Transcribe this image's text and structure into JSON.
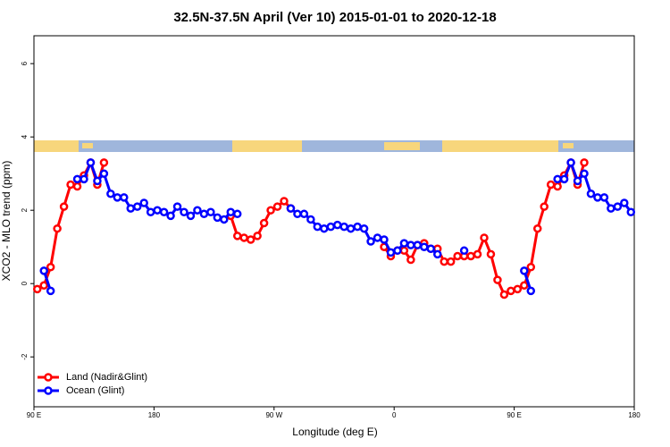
{
  "chart_data": {
    "type": "line",
    "title": "32.5N-37.5N April (Ver 10)   2015-01-01 to 2020-12-18",
    "x_label": "Longitude (deg E)",
    "y_label": "XCO2 - MLO trend (ppm)",
    "x": [
      92.5,
      97.5,
      102.5,
      107.5,
      112.5,
      117.5,
      122.5,
      127.5,
      132.5,
      137.5,
      142.5,
      147.5,
      152.5,
      157.5,
      162.5,
      167.5,
      172.5,
      177.5,
      182.5,
      187.5,
      192.5,
      197.5,
      202.5,
      207.5,
      212.5,
      217.5,
      222.5,
      227.5,
      232.5,
      237.5,
      242.5,
      247.5,
      252.5,
      257.5,
      262.5,
      267.5,
      272.5,
      277.5,
      282.5,
      287.5,
      292.5,
      297.5,
      302.5,
      307.5,
      312.5,
      317.5,
      322.5,
      327.5,
      332.5,
      337.5,
      342.5,
      347.5,
      352.5,
      357.5,
      362.5,
      367.5,
      372.5,
      377.5,
      382.5,
      387.5,
      392.5,
      397.5,
      402.5,
      407.5,
      412.5,
      417.5,
      422.5,
      427.5,
      432.5,
      437.5,
      442.5,
      447.5,
      452.5,
      457.5,
      462.5,
      467.5,
      472.5,
      477.5,
      482.5,
      487.5,
      492.5,
      497.5,
      502.5,
      507.5,
      512.5,
      517.5,
      522.5,
      527.5,
      532.5,
      537.5
    ],
    "series": [
      {
        "name": "Land (Nadir&Glint)",
        "color": "#ff0000",
        "values": [
          -0.15,
          -0.05,
          0.45,
          1.5,
          2.1,
          2.7,
          2.65,
          2.95,
          3.3,
          2.7,
          3.3,
          null,
          null,
          null,
          null,
          null,
          null,
          null,
          null,
          null,
          null,
          null,
          null,
          null,
          null,
          null,
          null,
          null,
          null,
          1.85,
          1.3,
          1.25,
          1.2,
          1.3,
          1.65,
          2.0,
          2.1,
          2.25,
          2.05,
          null,
          null,
          null,
          null,
          null,
          null,
          null,
          null,
          null,
          null,
          null,
          null,
          null,
          1.0,
          0.75,
          0.9,
          0.9,
          0.65,
          1.05,
          1.1,
          0.95,
          0.95,
          0.6,
          0.6,
          0.75,
          0.75,
          0.75,
          0.8,
          1.25,
          0.8,
          0.1,
          -0.3,
          -0.2,
          -0.15,
          -0.05,
          0.45,
          1.5,
          2.1,
          2.7,
          2.65,
          2.95,
          3.3,
          2.7,
          3.3,
          null,
          null,
          null,
          null,
          null,
          null,
          null
        ]
      },
      {
        "name": "Ocean (Glint)",
        "color": "#0000ff",
        "values": [
          null,
          0.35,
          -0.2,
          null,
          null,
          null,
          2.85,
          2.85,
          3.3,
          2.8,
          3.0,
          2.45,
          2.35,
          2.35,
          2.05,
          2.1,
          2.2,
          1.95,
          2.0,
          1.95,
          1.85,
          2.1,
          1.95,
          1.85,
          2.0,
          1.9,
          1.95,
          1.8,
          1.75,
          1.95,
          1.9,
          null,
          null,
          null,
          null,
          null,
          null,
          null,
          2.05,
          1.9,
          1.9,
          1.75,
          1.55,
          1.5,
          1.55,
          1.6,
          1.55,
          1.5,
          1.55,
          1.5,
          1.15,
          1.25,
          1.2,
          0.85,
          0.9,
          1.1,
          1.05,
          1.05,
          1.0,
          0.95,
          0.8,
          null,
          null,
          null,
          0.9,
          null,
          null,
          null,
          null,
          null,
          null,
          null,
          null,
          0.35,
          -0.2,
          null,
          null,
          null,
          2.85,
          2.85,
          3.3,
          2.8,
          3.0,
          2.45,
          2.35,
          2.35,
          2.05,
          2.1,
          2.2,
          1.95
        ]
      }
    ],
    "xlim": [
      90,
      540
    ],
    "xticks": [
      {
        "value": 90,
        "label": "90 E"
      },
      180,
      {
        "value": 270,
        "label": "90 W"
      },
      {
        "value": 360,
        "label": "0"
      },
      {
        "value": 450,
        "label": "90 E"
      },
      {
        "value": 540,
        "label": "180"
      }
    ],
    "ylim": [
      -3.36,
      6.76
    ],
    "yticks": [
      -2,
      0,
      2,
      4,
      6
    ],
    "legend": "bottom-left"
  }
}
